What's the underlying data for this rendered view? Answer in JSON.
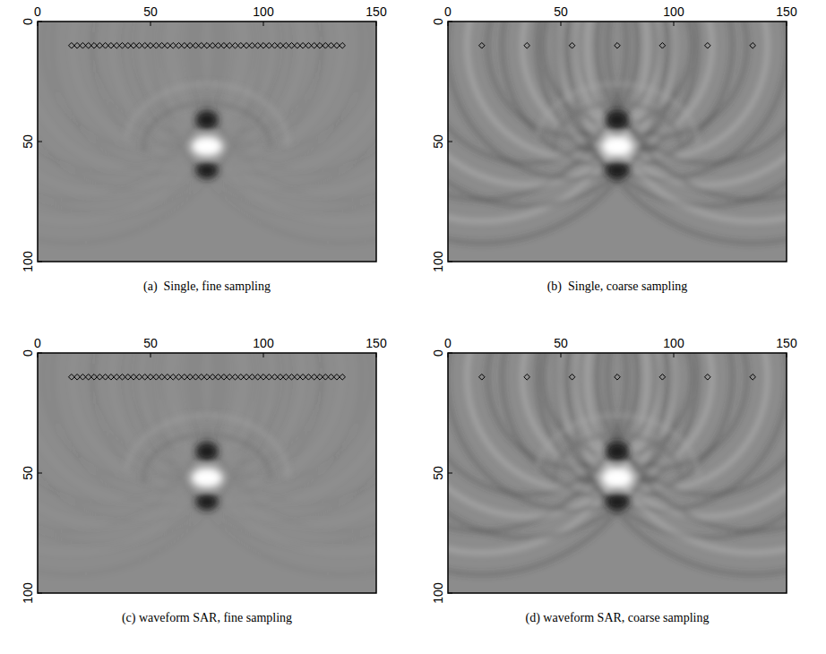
{
  "chart_data": [
    {
      "type": "image",
      "caption": "(a)  Single, fine sampling",
      "xlim": [
        0,
        150
      ],
      "ylim": [
        0,
        100
      ],
      "xticks": [
        0,
        50,
        100,
        150
      ],
      "yticks": [
        0,
        50,
        100
      ],
      "receivers": {
        "x": [
          15,
          17.5,
          20,
          22.5,
          25,
          27.5,
          30,
          32.5,
          35,
          37.5,
          40,
          42.5,
          45,
          47.5,
          50,
          52.5,
          55,
          57.5,
          60,
          62.5,
          65,
          67.5,
          70,
          72.5,
          75,
          77.5,
          80,
          82.5,
          85,
          87.5,
          90,
          92.5,
          95,
          97.5,
          100,
          102.5,
          105,
          107.5,
          110,
          112.5,
          115,
          117.5,
          120,
          122.5,
          125,
          127.5,
          130,
          132.5,
          135
        ],
        "y": 10
      },
      "focus": {
        "x": 75,
        "y": 52
      }
    },
    {
      "type": "image",
      "caption": "(b)  Single, coarse sampling",
      "xlim": [
        0,
        150
      ],
      "ylim": [
        0,
        100
      ],
      "xticks": [
        0,
        50,
        100,
        150
      ],
      "yticks": [
        0,
        50,
        100
      ],
      "receivers": {
        "x": [
          15,
          35,
          55,
          75,
          95,
          115,
          135
        ],
        "y": 10
      },
      "focus": {
        "x": 75,
        "y": 52
      }
    },
    {
      "type": "image",
      "caption": "(c) waveform SAR, fine sampling",
      "xlim": [
        0,
        150
      ],
      "ylim": [
        0,
        100
      ],
      "xticks": [
        0,
        50,
        100,
        150
      ],
      "yticks": [
        0,
        50,
        100
      ],
      "receivers": {
        "x": [
          15,
          17.5,
          20,
          22.5,
          25,
          27.5,
          30,
          32.5,
          35,
          37.5,
          40,
          42.5,
          45,
          47.5,
          50,
          52.5,
          55,
          57.5,
          60,
          62.5,
          65,
          67.5,
          70,
          72.5,
          75,
          77.5,
          80,
          82.5,
          85,
          87.5,
          90,
          92.5,
          95,
          97.5,
          100,
          102.5,
          105,
          107.5,
          110,
          112.5,
          115,
          117.5,
          120,
          122.5,
          125,
          127.5,
          130,
          132.5,
          135
        ],
        "y": 10
      },
      "focus": {
        "x": 75,
        "y": 52
      }
    },
    {
      "type": "image",
      "caption": "(d) waveform SAR, coarse sampling",
      "xlim": [
        0,
        150
      ],
      "ylim": [
        0,
        100
      ],
      "xticks": [
        0,
        50,
        100,
        150
      ],
      "yticks": [
        0,
        50,
        100
      ],
      "receivers": {
        "x": [
          15,
          35,
          55,
          75,
          95,
          115,
          135
        ],
        "y": 10
      },
      "focus": {
        "x": 75,
        "y": 52
      }
    }
  ]
}
